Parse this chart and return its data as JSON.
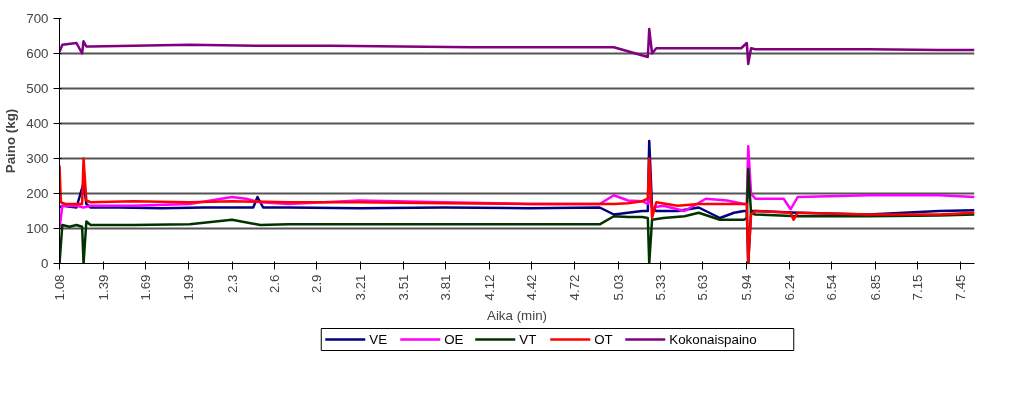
{
  "chart_data": {
    "type": "line",
    "xlabel": "Aika (min)",
    "ylabel": "Paino (kg)",
    "xlim": [
      1.08,
      7.55
    ],
    "ylim": [
      0,
      700
    ],
    "xticks": [
      1.08,
      1.39,
      1.69,
      1.99,
      2.3,
      2.6,
      2.9,
      3.21,
      3.51,
      3.81,
      4.12,
      4.42,
      4.72,
      5.03,
      5.33,
      5.63,
      5.94,
      6.24,
      6.54,
      6.85,
      7.15,
      7.45
    ],
    "yticks": [
      0,
      100,
      200,
      300,
      400,
      500,
      600,
      700
    ],
    "grid": "y",
    "legend": "bottom",
    "marker": "none",
    "line_style": "solid",
    "series": [
      {
        "name": "VE",
        "color": "#000080",
        "x": [
          1.08,
          1.1,
          1.2,
          1.25,
          1.27,
          1.3,
          1.5,
          1.8,
          2.1,
          2.45,
          2.48,
          2.52,
          2.7,
          3.2,
          3.8,
          4.4,
          4.9,
          5.0,
          5.1,
          5.2,
          5.24,
          5.25,
          5.27,
          5.3,
          5.45,
          5.6,
          5.75,
          5.85,
          5.92,
          5.94,
          5.95,
          5.97,
          6.0,
          6.3,
          6.8,
          7.3,
          7.55
        ],
        "values": [
          160,
          165,
          160,
          230,
          170,
          160,
          160,
          158,
          160,
          160,
          190,
          160,
          160,
          158,
          160,
          158,
          160,
          140,
          145,
          150,
          150,
          350,
          160,
          150,
          150,
          160,
          130,
          145,
          150,
          150,
          0,
          150,
          150,
          145,
          140,
          150,
          152
        ]
      },
      {
        "name": "OE",
        "color": "#ff00ff",
        "x": [
          1.08,
          1.1,
          1.2,
          1.25,
          1.3,
          1.6,
          2.0,
          2.3,
          2.4,
          2.5,
          2.7,
          3.2,
          3.8,
          4.4,
          4.9,
          5.0,
          5.1,
          5.2,
          5.24,
          5.25,
          5.27,
          5.35,
          5.5,
          5.65,
          5.8,
          5.92,
          5.94,
          5.95,
          5.97,
          6.0,
          6.2,
          6.25,
          6.3,
          6.8,
          7.3,
          7.55
        ],
        "values": [
          100,
          165,
          165,
          160,
          165,
          165,
          170,
          190,
          185,
          175,
          170,
          180,
          175,
          170,
          170,
          195,
          180,
          178,
          170,
          190,
          160,
          165,
          150,
          185,
          180,
          170,
          170,
          335,
          200,
          185,
          185,
          155,
          190,
          195,
          195,
          190
        ]
      },
      {
        "name": "VT",
        "color": "#003300",
        "x": [
          1.08,
          1.1,
          1.15,
          1.2,
          1.24,
          1.25,
          1.27,
          1.3,
          1.6,
          2.0,
          2.3,
          2.5,
          2.7,
          3.2,
          3.8,
          4.4,
          4.9,
          5.0,
          5.1,
          5.2,
          5.24,
          5.25,
          5.27,
          5.35,
          5.5,
          5.6,
          5.75,
          5.92,
          5.94,
          5.95,
          5.97,
          6.0,
          6.3,
          6.8,
          7.3,
          7.55
        ],
        "values": [
          0,
          110,
          105,
          110,
          105,
          0,
          120,
          110,
          110,
          112,
          125,
          110,
          112,
          112,
          112,
          112,
          112,
          135,
          133,
          133,
          130,
          0,
          125,
          130,
          135,
          145,
          125,
          125,
          130,
          270,
          145,
          140,
          135,
          135,
          137,
          140
        ]
      },
      {
        "name": "OT",
        "color": "#ff0000",
        "x": [
          1.08,
          1.09,
          1.12,
          1.2,
          1.24,
          1.25,
          1.27,
          1.3,
          1.6,
          2.0,
          2.3,
          2.7,
          3.2,
          3.8,
          4.4,
          4.9,
          5.0,
          5.1,
          5.2,
          5.24,
          5.25,
          5.27,
          5.3,
          5.45,
          5.6,
          5.9,
          5.94,
          5.95,
          5.97,
          6.0,
          6.25,
          6.27,
          6.3,
          6.8,
          7.3,
          7.55
        ],
        "values": [
          280,
          175,
          170,
          170,
          170,
          300,
          180,
          175,
          178,
          175,
          178,
          175,
          175,
          172,
          170,
          170,
          170,
          172,
          178,
          185,
          300,
          130,
          175,
          165,
          170,
          170,
          170,
          0,
          140,
          150,
          145,
          125,
          145,
          140,
          140,
          145
        ]
      },
      {
        "name": "Kokonaispaino",
        "color": "#800080",
        "x": [
          1.08,
          1.1,
          1.2,
          1.24,
          1.25,
          1.27,
          1.3,
          1.6,
          2.0,
          2.5,
          3.0,
          3.5,
          4.0,
          4.5,
          5.0,
          5.24,
          5.25,
          5.27,
          5.3,
          5.5,
          5.9,
          5.94,
          5.95,
          5.97,
          6.0,
          6.3,
          6.8,
          7.3,
          7.55
        ],
        "values": [
          605,
          625,
          630,
          600,
          635,
          620,
          620,
          622,
          625,
          622,
          622,
          620,
          618,
          618,
          618,
          590,
          670,
          600,
          615,
          615,
          615,
          630,
          570,
          615,
          612,
          612,
          612,
          610,
          610
        ]
      }
    ]
  }
}
